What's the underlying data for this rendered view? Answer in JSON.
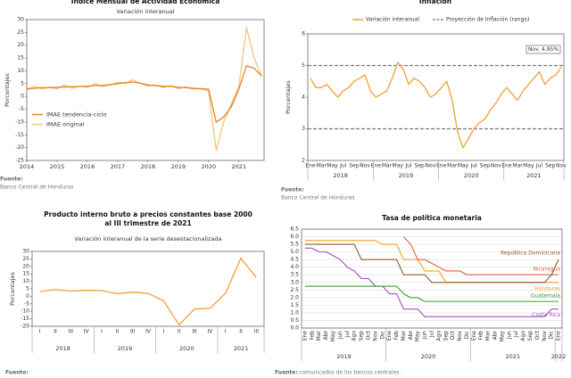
{
  "chart_data": [
    {
      "type": "line",
      "title": [
        "Índice Mensual de Actividad Económica"
      ],
      "subtitle": "Variación interanual",
      "y_label": "Porcentajes",
      "x": [
        2014,
        2014.25,
        2014.5,
        2014.75,
        2015,
        2015.25,
        2015.5,
        2015.75,
        2016,
        2016.25,
        2016.5,
        2016.75,
        2017,
        2017.25,
        2017.5,
        2017.75,
        2018,
        2018.25,
        2018.5,
        2018.75,
        2019,
        2019.25,
        2019.5,
        2019.75,
        2020,
        2020.25,
        2020.5,
        2020.75,
        2021,
        2021.25,
        2021.5,
        2021.75
      ],
      "xlim": [
        2014,
        2021.83
      ],
      "xticks": [
        2014,
        2015,
        2016,
        2017,
        2018,
        2019,
        2020,
        2021
      ],
      "ylim": [
        -25,
        30
      ],
      "yticks": [
        -25,
        -20,
        -15,
        -10,
        -5,
        0,
        5,
        10,
        15,
        20,
        25,
        30
      ],
      "legend": "lower left",
      "series": [
        {
          "name": "IMAE tendencia-ciclo",
          "color": "#e0861a",
          "values": [
            3,
            3.2,
            3.4,
            3.5,
            3.6,
            3.7,
            3.8,
            3.9,
            4,
            4.2,
            4.3,
            4.6,
            5,
            5.4,
            5.6,
            5.2,
            4.5,
            4.2,
            4,
            3.9,
            3.6,
            3.4,
            3.2,
            3,
            2.8,
            -10,
            -8,
            -4,
            3,
            12,
            11,
            8
          ]
        },
        {
          "name": "IMAE original",
          "color": "#f6c27e",
          "values": [
            2.5,
            4,
            3,
            3.5,
            3,
            4.5,
            3.2,
            4,
            3.5,
            5,
            3.8,
            4.5,
            5.5,
            5,
            6.5,
            5,
            4,
            4.5,
            3.5,
            4.2,
            3,
            3.8,
            2.8,
            3.2,
            2,
            -21,
            -10,
            -3,
            4,
            27,
            15,
            8
          ]
        }
      ],
      "source_label": "Fuente:",
      "source": "Banco Central de Honduras"
    },
    {
      "type": "line",
      "title": [
        "Inflación"
      ],
      "y_label": "Porcentajes",
      "categories": [
        "Ene",
        null,
        "Mar",
        null,
        "May",
        null,
        "Jul",
        null,
        "Sep",
        null,
        "Nov",
        null,
        "Ene",
        null,
        "Mar",
        null,
        "May",
        null,
        "Jul",
        null,
        "Sep",
        null,
        "Nov",
        null,
        "Ene",
        null,
        "Mar",
        null,
        "May",
        null,
        "Jul",
        null,
        "Sep",
        null,
        "Nov",
        null,
        "Ene",
        null,
        "Mar",
        null,
        "May",
        null,
        "Jul",
        null,
        "Sep",
        null,
        "Nov"
      ],
      "year_labels": [
        "2018",
        "2019",
        "2020",
        "2021"
      ],
      "ylim": [
        2,
        6
      ],
      "yticks": [
        2,
        3,
        4,
        5,
        6
      ],
      "series": [
        {
          "name": "Variación interanual",
          "color": "#f0a030",
          "values": [
            4.6,
            4.3,
            4.3,
            4.4,
            4.2,
            4.0,
            4.2,
            4.3,
            4.5,
            4.6,
            4.7,
            4.2,
            4.0,
            4.1,
            4.2,
            4.6,
            5.1,
            4.9,
            4.4,
            4.6,
            4.5,
            4.3,
            4.0,
            4.1,
            4.3,
            4.5,
            3.9,
            2.9,
            2.4,
            2.7,
            3.0,
            3.2,
            3.3,
            3.6,
            3.8,
            4.1,
            4.3,
            4.1,
            3.9,
            4.2,
            4.4,
            4.6,
            4.8,
            4.4,
            4.6,
            4.7,
            4.95
          ]
        }
      ],
      "reference": {
        "name": "Proyección de Inflación (rango)",
        "color": "#777777",
        "values": [
          3,
          5
        ]
      },
      "annotation": "Nov. 4.95%",
      "source_label": "Fuente:",
      "source": "Banco Central de Honduras"
    },
    {
      "type": "line",
      "title": [
        "Producto interno bruto a precios constantes base 2000",
        "al III trimestre de 2021"
      ],
      "subtitle": "Variación interanual de la serie desestacionalizada",
      "y_label": "Porcentajes",
      "categories": [
        "I",
        "II",
        "III",
        "IV",
        "I",
        "II",
        "III",
        "IV",
        "I",
        "II",
        "III",
        "IV",
        "I",
        "II",
        "III"
      ],
      "year_labels": [
        "2018",
        "2019",
        "2020",
        "2021"
      ],
      "ylim": [
        -20,
        30
      ],
      "yticks": [
        -20,
        -15,
        -10,
        -5,
        0,
        5,
        10,
        15,
        20,
        25,
        30
      ],
      "series": [
        {
          "name": "PIB",
          "color": "#f0a030",
          "values": [
            3.2,
            4.5,
            3.5,
            4.0,
            3.8,
            1.8,
            2.8,
            2.0,
            -3.0,
            -19.0,
            -8.5,
            -8.0,
            2.0,
            25.5,
            12.5
          ]
        }
      ],
      "source_label": "Fuente:"
    },
    {
      "type": "line",
      "title": [
        "Tasa de política monetaria"
      ],
      "categories": [
        "Ene",
        "Feb",
        "Mar",
        "Abr",
        "May",
        "Jun",
        "Jul",
        "Ago",
        "Sep",
        "Oct",
        "Nov",
        "Dic",
        "Ene",
        "Feb",
        "Mar",
        "Abr",
        "May",
        "Jun",
        "Jul",
        "Ago",
        "Sep",
        "Oct",
        "Nov",
        "Dic",
        "Ene",
        "Feb",
        "Mar",
        "Abr",
        "May",
        "Jun",
        "Jul",
        "Ago",
        "Sep",
        "Oct",
        "Nov",
        "Dic",
        "Ene"
      ],
      "year_labels": [
        "2019",
        "2020",
        "2021",
        "2022"
      ],
      "ylim": [
        0,
        6.5
      ],
      "yticks": [
        {
          "value": 0,
          "label": "0.0"
        },
        {
          "value": 0.5,
          "label": "0.5"
        },
        {
          "value": 1,
          "label": "1.0"
        },
        {
          "value": 1.5,
          "label": "1.5"
        },
        {
          "value": 2,
          "label": "2.0"
        },
        {
          "value": 2.5,
          "label": "2.5"
        },
        {
          "value": 3,
          "label": "3.0"
        },
        {
          "value": 3.5,
          "label": "3.5"
        },
        {
          "value": 4,
          "label": "4.0"
        },
        {
          "value": 4.5,
          "label": "4.5"
        },
        {
          "value": 5,
          "label": "5.0"
        },
        {
          "value": 5.5,
          "label": "5.5"
        },
        {
          "value": 6,
          "label": "6.0"
        },
        {
          "value": 6.5,
          "label": "6.5"
        }
      ],
      "grid": true,
      "series": [
        {
          "name": "República Dominicana",
          "color": "#8b5a2b",
          "values": [
            5.5,
            5.5,
            5.5,
            5.5,
            5.5,
            5.5,
            5.5,
            5.5,
            4.5,
            4.5,
            4.5,
            4.5,
            4.5,
            4.5,
            3.5,
            3.5,
            3.5,
            3.5,
            3,
            3,
            3,
            3,
            3,
            3,
            3,
            3,
            3,
            3,
            3,
            3,
            3,
            3,
            3,
            3,
            3,
            3.5,
            4.5
          ]
        },
        {
          "name": "Nicaragua",
          "color": "#e2603a",
          "values": [
            null,
            null,
            null,
            null,
            null,
            null,
            null,
            null,
            null,
            null,
            null,
            null,
            null,
            null,
            6,
            5.5,
            4.5,
            4.5,
            4.25,
            4,
            3.75,
            3.75,
            3.75,
            3.5,
            3.5,
            3.5,
            3.5,
            3.5,
            3.5,
            3.5,
            3.5,
            3.5,
            3.5,
            3.5,
            3.5,
            3.5,
            3.5
          ]
        },
        {
          "name": "Honduras",
          "color": "#f0a020",
          "values": [
            5.75,
            5.75,
            5.75,
            5.75,
            5.75,
            5.75,
            5.75,
            5.75,
            5.75,
            5.75,
            5.75,
            5.5,
            5.5,
            5.5,
            4.5,
            4.5,
            4.5,
            3.75,
            3.75,
            3.75,
            3,
            3,
            3,
            3,
            3,
            3,
            3,
            3,
            3,
            3,
            3,
            3,
            3,
            3,
            3,
            3,
            3
          ]
        },
        {
          "name": "Guatemala",
          "color": "#3a9a3a",
          "values": [
            2.75,
            2.75,
            2.75,
            2.75,
            2.75,
            2.75,
            2.75,
            2.75,
            2.75,
            2.75,
            2.75,
            2.75,
            2.75,
            2.75,
            2.25,
            2,
            2,
            1.75,
            1.75,
            1.75,
            1.75,
            1.75,
            1.75,
            1.75,
            1.75,
            1.75,
            1.75,
            1.75,
            1.75,
            1.75,
            1.75,
            1.75,
            1.75,
            1.75,
            1.75,
            1.75,
            1.75
          ]
        },
        {
          "name": "Costa Rica",
          "color": "#a050c0",
          "values": [
            5.25,
            5.25,
            5,
            5,
            4.75,
            4.5,
            4,
            3.75,
            3.25,
            3.25,
            2.75,
            2.75,
            2.25,
            2.25,
            1.25,
            1.25,
            1.25,
            0.75,
            0.75,
            0.75,
            0.75,
            0.75,
            0.75,
            0.75,
            0.75,
            0.75,
            0.75,
            0.75,
            0.75,
            0.75,
            0.75,
            0.75,
            0.75,
            0.75,
            0.75,
            1.25,
            1.25
          ]
        }
      ],
      "source_label": "Fuente:",
      "source": "comunicados de los bancos centrales."
    }
  ]
}
